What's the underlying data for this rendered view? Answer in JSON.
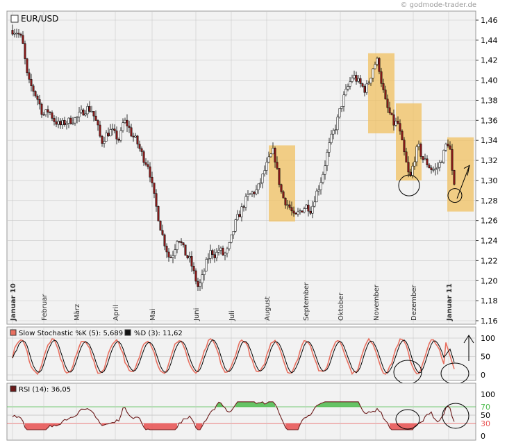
{
  "watermark": "© godmode-trader.de",
  "main_chart": {
    "title": "EUR/USD",
    "y_ticks": [
      "1,46",
      "1,44",
      "1,42",
      "1,40",
      "1,38",
      "1,36",
      "1,34",
      "1,32",
      "1,30",
      "1,28",
      "1,26",
      "1,24",
      "1,22",
      "1,20",
      "1,18",
      "1,16"
    ],
    "month_labels": [
      "Januar 10",
      "Februar",
      "März",
      "April",
      "Mai",
      "Juni",
      "Juli",
      "August",
      "September",
      "Oktober",
      "November",
      "Dezember",
      "Januar 11"
    ],
    "year_marker_labels": [
      "Januar 10",
      "Januar 11"
    ],
    "colors": {
      "candle_up": "#ffffff",
      "candle_down": "#8b1a1a",
      "wick": "#000000",
      "highlight": "#f0c060"
    }
  },
  "stochastic_panel": {
    "k_label": "Slow Stochastic %K (5): 5,689",
    "d_label": "%D (3): 11,62",
    "y_ticks": [
      "100",
      "50",
      "0"
    ],
    "colors": {
      "k": "#e87060",
      "d": "#000000"
    }
  },
  "rsi_panel": {
    "label": "RSI (14): 36,05",
    "y_ticks": [
      "100",
      "70",
      "50",
      "30",
      "0"
    ],
    "level_labels": [
      "70",
      "30"
    ],
    "colors": {
      "rsi": "#6b1a1a",
      "overbought": "#4cbb4c",
      "oversold": "#e85050"
    }
  },
  "chart_data": [
    {
      "type": "candlestick",
      "title": "EUR/USD",
      "x": [
        "Jan 10",
        "Feb",
        "Mär",
        "Apr",
        "Mai",
        "Jun",
        "Jul",
        "Aug",
        "Sep",
        "Okt",
        "Nov",
        "Dez",
        "Jan 11"
      ],
      "close": [
        1.44,
        1.37,
        1.36,
        1.34,
        1.33,
        1.22,
        1.22,
        1.3,
        1.27,
        1.4,
        1.4,
        1.33,
        1.33
      ],
      "ylim": [
        1.16,
        1.46
      ],
      "grid": true
    },
    {
      "type": "line",
      "title": "Slow Stochastic %K (5): 5,689",
      "series": [
        {
          "name": "%K (5)",
          "last": 5.689
        },
        {
          "name": "%D (3)",
          "last": 11.62
        }
      ],
      "ylim": [
        0,
        100
      ]
    },
    {
      "type": "line",
      "title": "RSI (14): 36,05",
      "series": [
        {
          "name": "RSI (14)",
          "last": 36.05
        }
      ],
      "levels": [
        70,
        30
      ],
      "ylim": [
        0,
        100
      ]
    }
  ]
}
